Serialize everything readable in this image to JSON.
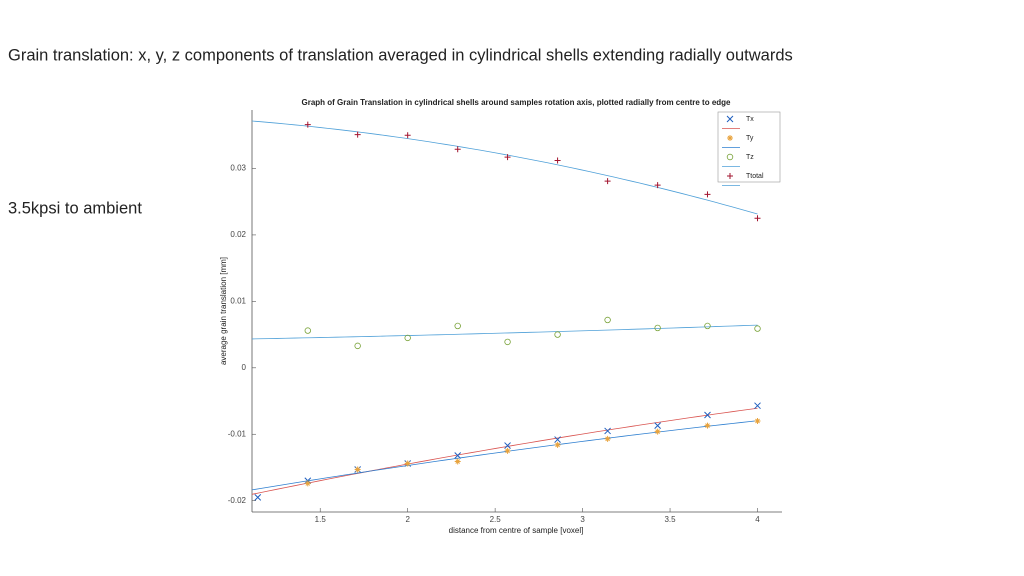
{
  "slide": {
    "heading": "Grain translation: x, y, z components of translation averaged in cylindrical shells extending radially outwards",
    "note": "3.5kpsi to ambient"
  },
  "chart_data": {
    "type": "scatter",
    "title": "Graph of Grain Translation in cylindrical shells around  samples rotation axis, plotted radially from centre to edge",
    "x_label": "distance from centre of sample [voxel]",
    "y_label": "average grain translation [mm]",
    "x": [
      1.143,
      1.429,
      1.714,
      2.0,
      2.286,
      2.571,
      2.857,
      3.143,
      3.429,
      3.714,
      4.0
    ],
    "series": [
      {
        "name": "Tx",
        "color": "#1f5fbf",
        "marker": "x",
        "fit_color": "#d9534f",
        "values": [
          -0.0195,
          -0.017,
          -0.0153,
          -0.0144,
          -0.0132,
          -0.0117,
          -0.0108,
          -0.0095,
          -0.0087,
          -0.0071,
          -0.0057
        ]
      },
      {
        "name": "Ty",
        "color": "#e8a33d",
        "marker": "star",
        "fit_color": "#2e7fd0",
        "values": [
          null,
          -0.0174,
          -0.0153,
          -0.0144,
          -0.0141,
          -0.0125,
          -0.0116,
          -0.0107,
          -0.0096,
          -0.0087,
          -0.008
        ]
      },
      {
        "name": "Tz",
        "color": "#7aa33a",
        "marker": "circle",
        "fit_color": "#4fa0d8",
        "values": [
          null,
          0.0056,
          0.0033,
          0.0045,
          0.0063,
          0.0039,
          0.005,
          0.0072,
          0.006,
          0.0063,
          0.0059
        ]
      },
      {
        "name": "Ttotal",
        "color": "#a2142f",
        "marker": "plus",
        "fit_color": "#4fa0d8",
        "values": [
          null,
          0.0366,
          0.0351,
          0.035,
          0.0329,
          0.0317,
          0.0312,
          0.0281,
          0.0275,
          0.0261,
          0.0225
        ]
      }
    ],
    "xlim": [
      1.11,
      4.14
    ],
    "ylim": [
      -0.0217,
      0.0388
    ],
    "xticks": [
      1.5,
      2,
      2.5,
      3,
      3.5,
      4
    ],
    "yticks": [
      -0.02,
      -0.01,
      0,
      0.01,
      0.02,
      0.03
    ],
    "fit_degree": 2,
    "legend": "upper right"
  }
}
